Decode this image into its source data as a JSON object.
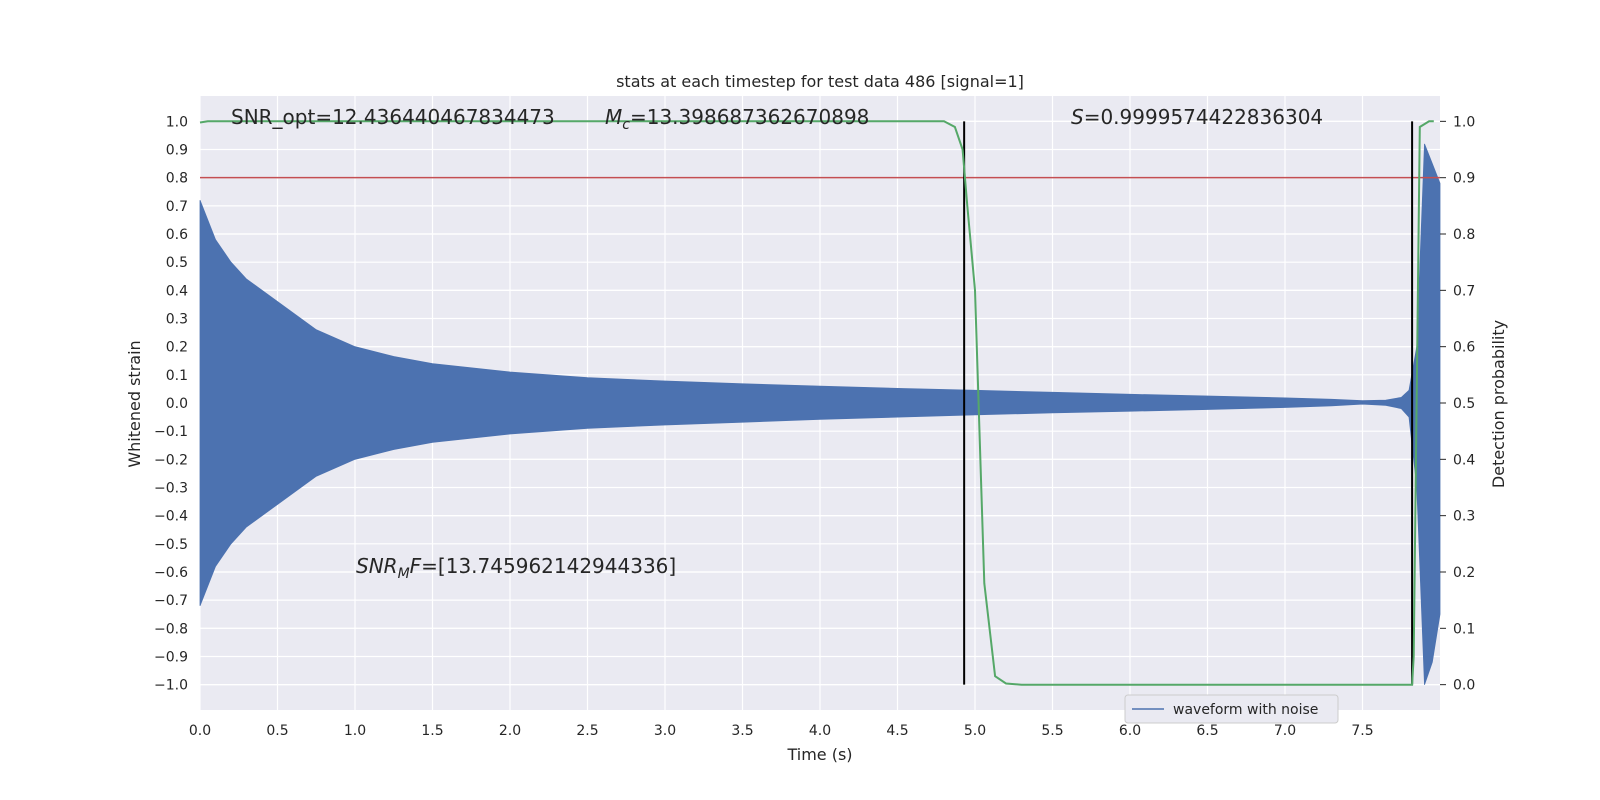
{
  "chart_data": {
    "type": "line",
    "title": "stats at each timestep for test data 486 [signal=1]",
    "xlabel": "Time (s)",
    "ylabel_left": "Whitened strain",
    "ylabel_right": "Detection probability",
    "xlim": [
      0.0,
      8.0
    ],
    "ylim_left": [
      -1.09,
      1.09
    ],
    "ylim_right": [
      -0.045,
      1.045
    ],
    "x_ticks": [
      "0.0",
      "0.5",
      "1.0",
      "1.5",
      "2.0",
      "2.5",
      "3.0",
      "3.5",
      "4.0",
      "4.5",
      "5.0",
      "5.5",
      "6.0",
      "6.5",
      "7.0",
      "7.5"
    ],
    "x_tick_values": [
      0.0,
      0.5,
      1.0,
      1.5,
      2.0,
      2.5,
      3.0,
      3.5,
      4.0,
      4.5,
      5.0,
      5.5,
      6.0,
      6.5,
      7.0,
      7.5
    ],
    "y_left_ticks": [
      "1.0",
      "0.9",
      "0.8",
      "0.7",
      "0.6",
      "0.5",
      "0.4",
      "0.3",
      "0.2",
      "0.1",
      "0.0",
      "−0.1",
      "−0.2",
      "−0.3",
      "−0.4",
      "−0.5",
      "−0.6",
      "−0.7",
      "−0.8",
      "−0.9",
      "−1.0"
    ],
    "y_left_tick_values": [
      1.0,
      0.9,
      0.8,
      0.7,
      0.6,
      0.5,
      0.4,
      0.3,
      0.2,
      0.1,
      0.0,
      -0.1,
      -0.2,
      -0.3,
      -0.4,
      -0.5,
      -0.6,
      -0.7,
      -0.8,
      -0.9,
      -1.0
    ],
    "y_right_ticks": [
      "1.0",
      "0.9",
      "0.8",
      "0.7",
      "0.6",
      "0.5",
      "0.4",
      "0.3",
      "0.2",
      "0.1",
      "0.0"
    ],
    "y_right_tick_values": [
      1.0,
      0.9,
      0.8,
      0.7,
      0.6,
      0.5,
      0.4,
      0.3,
      0.2,
      0.1,
      0.0
    ],
    "grid": true,
    "series": [
      {
        "name": "waveform with noise",
        "axis": "left",
        "color": "#4c72b0",
        "kind": "envelope",
        "x": [
          0.0,
          0.1,
          0.2,
          0.3,
          0.5,
          0.75,
          1.0,
          1.25,
          1.5,
          2.0,
          2.5,
          3.0,
          3.5,
          4.0,
          4.5,
          5.0,
          5.5,
          6.0,
          6.5,
          7.0,
          7.3,
          7.5,
          7.65,
          7.75,
          7.8,
          7.85,
          7.9,
          7.95,
          8.0
        ],
        "upper": [
          0.72,
          0.58,
          0.5,
          0.44,
          0.36,
          0.26,
          0.2,
          0.165,
          0.14,
          0.11,
          0.09,
          0.078,
          0.068,
          0.06,
          0.052,
          0.045,
          0.038,
          0.031,
          0.025,
          0.018,
          0.013,
          0.008,
          0.01,
          0.02,
          0.045,
          0.2,
          0.92,
          0.85,
          0.78
        ],
        "lower": [
          -0.72,
          -0.58,
          -0.5,
          -0.44,
          -0.36,
          -0.26,
          -0.2,
          -0.165,
          -0.14,
          -0.11,
          -0.09,
          -0.078,
          -0.068,
          -0.058,
          -0.05,
          -0.042,
          -0.035,
          -0.029,
          -0.023,
          -0.016,
          -0.01,
          -0.004,
          -0.008,
          -0.02,
          -0.05,
          -0.3,
          -1.0,
          -0.92,
          -0.75
        ]
      },
      {
        "axis": "right",
        "color": "#55a868",
        "kind": "line",
        "x": [
          0.0,
          0.05,
          4.8,
          4.87,
          4.92,
          4.95,
          5.0,
          5.06,
          5.13,
          5.2,
          5.3,
          6.0,
          7.0,
          7.82,
          7.83,
          7.87,
          7.93,
          7.96
        ],
        "y": [
          0.998,
          1.0,
          1.0,
          0.99,
          0.95,
          0.85,
          0.7,
          0.18,
          0.015,
          0.002,
          0.0,
          0.0,
          0.0,
          0.0,
          0.05,
          0.99,
          1.0,
          1.0
        ]
      }
    ],
    "threshold": {
      "axis": "right",
      "value": 0.9,
      "color": "#c44e52"
    },
    "vlines": [
      {
        "x": 4.93,
        "color": "#000000"
      },
      {
        "x": 7.82,
        "color": "#000000"
      }
    ],
    "annotations": {
      "snr_opt": "SNR_opt=12.436440467834473",
      "mc_symbol": "M",
      "mc_sub": "c",
      "mc_value": "=13.398687362670898",
      "s_symbol": "S",
      "s_value": "=0.9999574422836304",
      "snrmf_symbol": "SNR",
      "snrmf_sub": "M",
      "snrmf_tail": "F",
      "snrmf_value": "=[13.745962142944336]"
    },
    "legend": {
      "placement": "lower-right",
      "label": "waveform with noise"
    }
  }
}
